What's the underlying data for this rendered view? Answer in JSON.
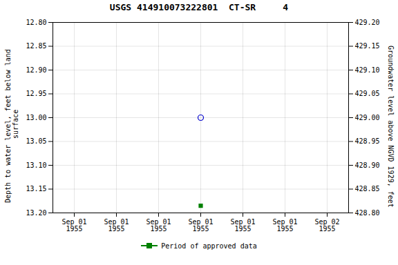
{
  "chart_data": {
    "type": "scatter",
    "title": "USGS 414910073222801  CT-SR     4",
    "categories": [
      "Sep 01\n1955",
      "Sep 01\n1955",
      "Sep 01\n1955",
      "Sep 01\n1955",
      "Sep 01\n1955",
      "Sep 01\n1955",
      "Sep 02\n1955"
    ],
    "ylabel": "Depth to water level, feet below land\n surface",
    "y2label": "Groundwater level above NGVD 1929, feet",
    "ylim": [
      13.2,
      12.8
    ],
    "yticks": [
      {
        "value": 12.8,
        "label": "12.80"
      },
      12.85,
      {
        "value": 12.9,
        "label": "12.90"
      },
      12.95,
      {
        "value": 13.0,
        "label": "13.00"
      },
      13.05,
      {
        "value": 13.1,
        "label": "13.10"
      },
      13.15,
      {
        "value": 13.2,
        "label": "13.20"
      }
    ],
    "y2lim": [
      428.8,
      429.2
    ],
    "y2ticks": [
      {
        "value": 429.2,
        "label": "429.20"
      },
      429.15,
      {
        "value": 429.1,
        "label": "429.10"
      },
      429.05,
      {
        "value": 429.0,
        "label": "429.00"
      },
      428.95,
      {
        "value": 428.9,
        "label": "428.90"
      },
      428.85,
      {
        "value": 428.8,
        "label": "428.80"
      }
    ],
    "grid": true,
    "legend": "bottom",
    "series": [
      {
        "color": "#0000cc",
        "marker": "circle",
        "values": [
          null,
          null,
          null,
          13.0,
          null,
          null,
          null
        ]
      },
      {
        "name": "Period of approved data",
        "color": "#008000",
        "marker": "square",
        "values": [
          null,
          null,
          null,
          13.185,
          null,
          null,
          null
        ]
      }
    ]
  }
}
